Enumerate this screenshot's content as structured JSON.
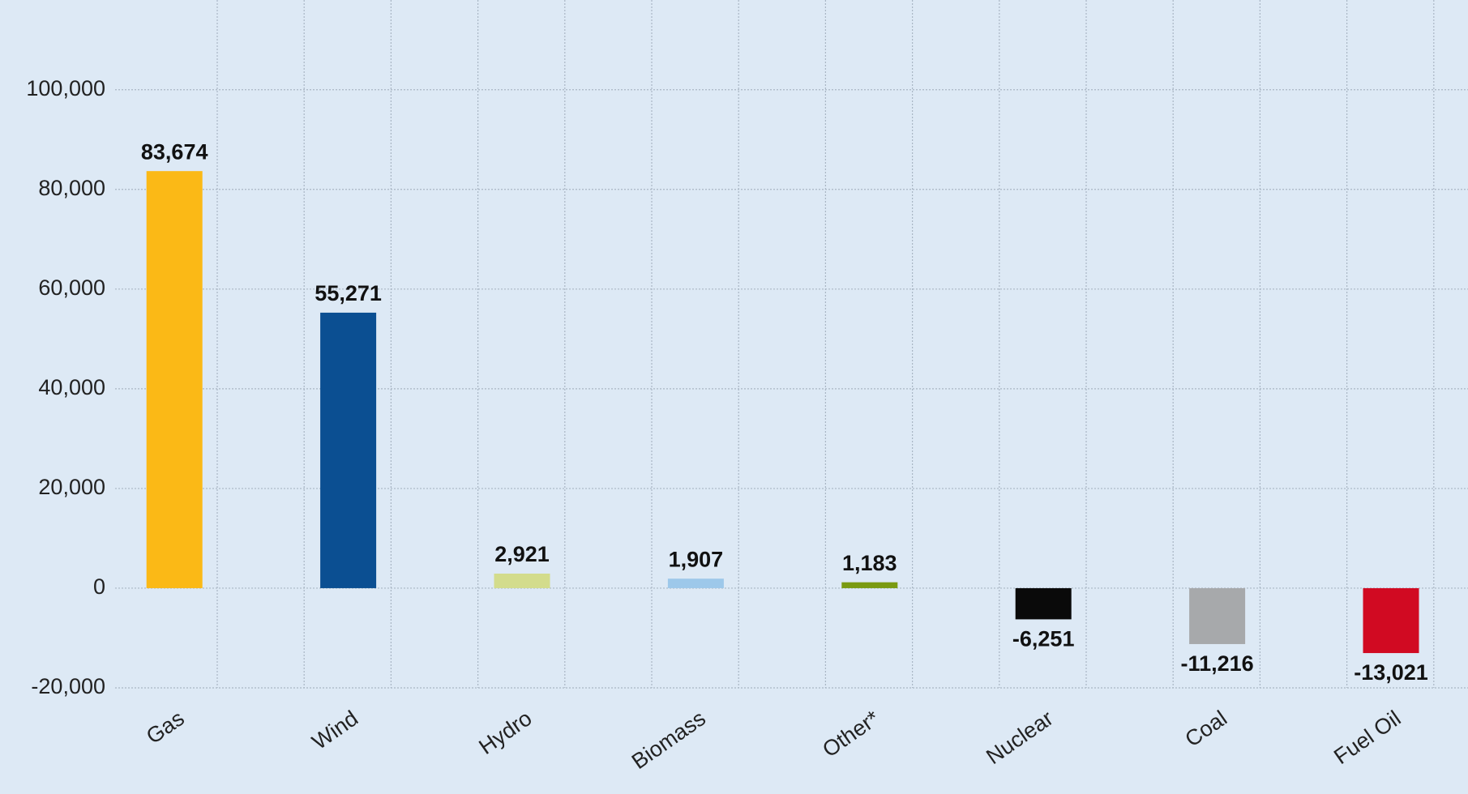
{
  "chart_data": {
    "type": "bar",
    "categories": [
      "Gas",
      "Wind",
      "Hydro",
      "Biomass",
      "Other*",
      "Nuclear",
      "Coal",
      "Fuel Oil"
    ],
    "values": [
      83674,
      55271,
      2921,
      1907,
      1183,
      -6251,
      -11216,
      -13021
    ],
    "value_labels": [
      "83,674",
      "55,271",
      "2,921",
      "1,907",
      "1,183",
      "-6,251",
      "-11,216",
      "-13,021"
    ],
    "colors": [
      "#fbb916",
      "#0b4f92",
      "#d3dc8c",
      "#9dc8ea",
      "#7a9a12",
      "#0a0a0a",
      "#a7a9ab",
      "#d10a22"
    ],
    "ylim": [
      -20000,
      118000
    ],
    "yticks": [
      {
        "value": -20000,
        "label": "-20,000"
      },
      0,
      {
        "value": 20000,
        "label": "20,000"
      },
      {
        "value": 40000,
        "label": "40,000"
      },
      {
        "value": 60000,
        "label": "60,000"
      },
      {
        "value": 80000,
        "label": "80,000"
      },
      {
        "value": 100000,
        "label": "100,000"
      }
    ],
    "grid": true
  }
}
